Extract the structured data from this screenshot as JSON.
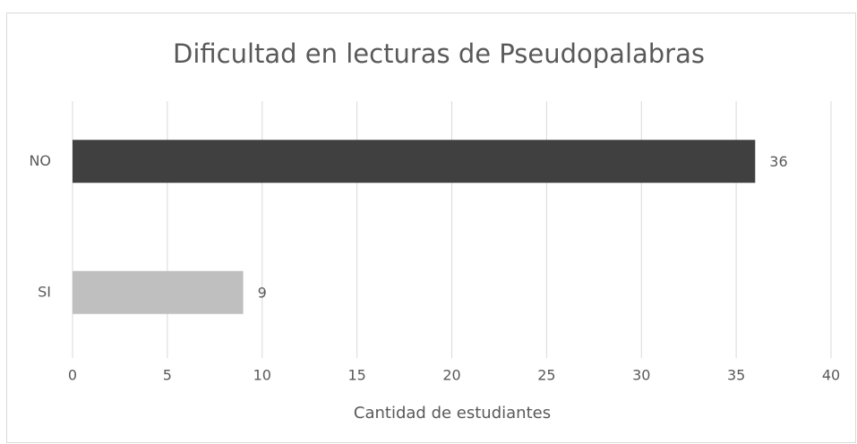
{
  "chart_data": {
    "type": "bar",
    "orientation": "horizontal",
    "title": "Dificultad en lecturas de Pseudopalabras",
    "categories": [
      "NO",
      "SI"
    ],
    "values": [
      36,
      9
    ],
    "colors": [
      "#404040",
      "#bfbfbf"
    ],
    "xlabel": "Cantidad de estudiantes",
    "xlim": [
      0,
      40
    ],
    "xticks": [
      0,
      5,
      10,
      15,
      20,
      25,
      30,
      35,
      40
    ],
    "grid": true
  }
}
